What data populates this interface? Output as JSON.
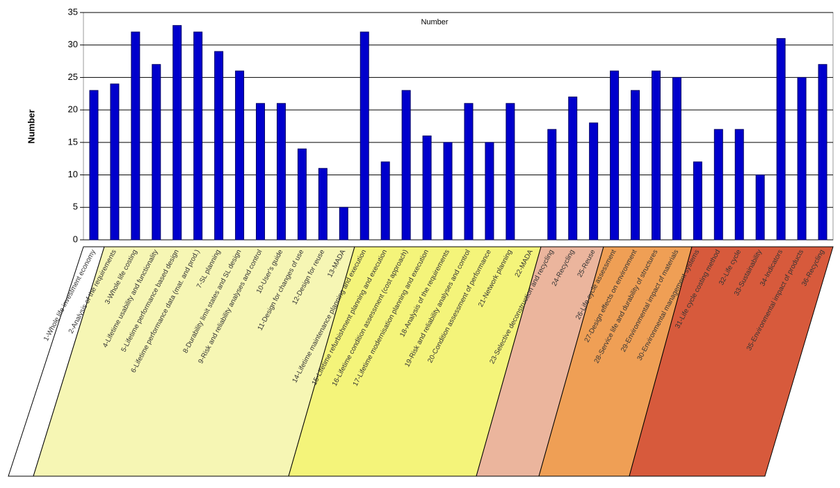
{
  "chart_data": {
    "type": "bar",
    "title": "Number",
    "y_label": "Number",
    "categories": [
      "1-Whole life investment economy",
      "2-Analysis of the requirements",
      "3-Whole life costing",
      "4-Lifetime usability and functionality",
      "5-Lifetime performance based design",
      "6-Lifetime performance data (mat. and prod.)",
      "7-SL planning",
      "8-Durability limit states and SL design",
      "9-Risk and reliability analyses and control",
      "10-User's guide",
      "11-Design for changes of use",
      "12-Design for reuse",
      "13-MADA",
      "14-Lifetime maintenance planning and execution",
      "15-Lifetime refurbishment planning and execution",
      "16-Lifetime condition assessment (cost approach)",
      "17-Lifetime modernisation planning and execution",
      "18-Analysis of the requirements",
      "19-Risk and reliability analyses and control",
      "20-Condition assessment of performance",
      "21-Network planning",
      "22-MADA",
      "23-Selective deconstruction and recycling",
      "24-Recycling",
      "25-Reuse",
      "26-Life cycle assessment",
      "27-Design effects on environment",
      "28-Service life and durability of structures",
      "29-Environmental impact of materials",
      "30-Environmental management systems",
      "31-Life cycle costing method",
      "32-Life cycle",
      "33-Sustainability",
      "34-Indicators",
      "35-Environmental impact of products",
      "36-Recycling"
    ],
    "values": [
      23,
      24,
      32,
      27,
      33,
      32,
      29,
      26,
      21,
      21,
      14,
      11,
      5,
      32,
      12,
      23,
      16,
      15,
      21,
      15,
      21,
      null,
      17,
      22,
      18,
      26,
      23,
      26,
      25,
      12,
      17,
      17,
      10,
      31,
      25,
      27
    ],
    "color": "#0000cc",
    "ylim": [
      0,
      35
    ],
    "yticks": [
      0,
      5,
      10,
      15,
      20,
      25,
      30,
      35
    ],
    "grid": true
  }
}
